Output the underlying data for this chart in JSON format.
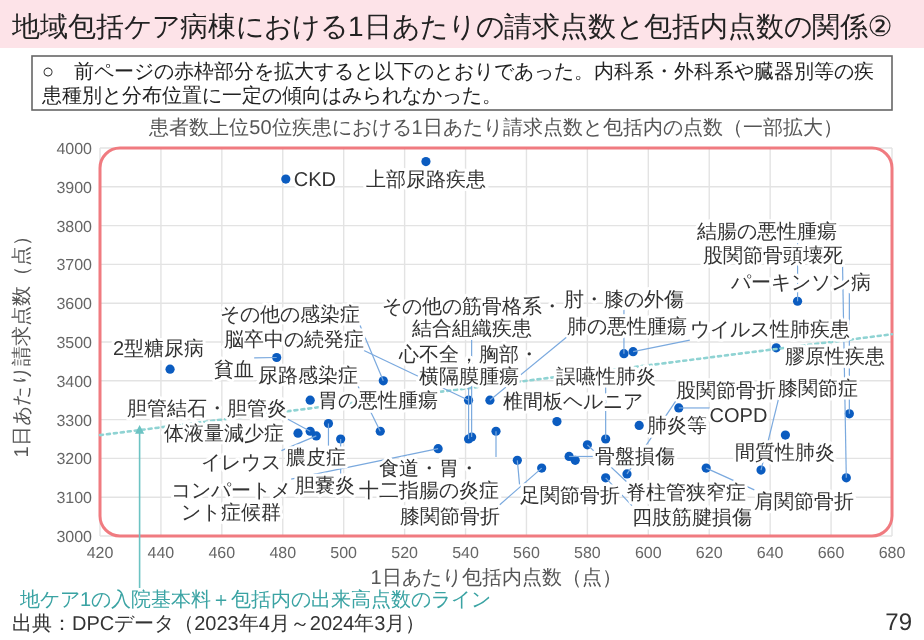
{
  "chart_data": {
    "type": "scatter",
    "title": "地域包括ケア病棟における1日あたりの請求点数と包括内点数の関係②",
    "subtitle": "患者数上位50位疾患における1日あたり請求点数と包括内の点数（一部拡大）",
    "xlabel": "1日あたり包括内点数（点）",
    "ylabel": "1日あたり請求点数（点）",
    "xlim": [
      420,
      680
    ],
    "xticks": [
      420,
      440,
      460,
      480,
      500,
      520,
      540,
      560,
      580,
      600,
      620,
      640,
      660,
      680
    ],
    "ylim": [
      3000,
      4000
    ],
    "yticks": [
      3000,
      3100,
      3200,
      3300,
      3400,
      3500,
      3600,
      3700,
      3800,
      3900,
      4000
    ],
    "grid": true,
    "marker": "circle",
    "series": [
      {
        "color": "#0b5cc0",
        "x": [
          481,
          527,
          443,
          478,
          513,
          489,
          495,
          485,
          489,
          491,
          499,
          512,
          531,
          541,
          542,
          541,
          548,
          550,
          570,
          580,
          586,
          597,
          610,
          557,
          565,
          574,
          576,
          586,
          593,
          619,
          637,
          645,
          666,
          665,
          592,
          595,
          649,
          642
        ],
        "values": [
          3920,
          3965,
          3430,
          3460,
          3400,
          3350,
          3290,
          3265,
          3270,
          3258,
          3250,
          3270,
          3225,
          3250,
          3255,
          3350,
          3350,
          3270,
          3295,
          3235,
          3250,
          3285,
          3330,
          3195,
          3175,
          3205,
          3195,
          3150,
          3160,
          3175,
          3170,
          3260,
          3315,
          3150,
          3470,
          3475,
          3605,
          3485
        ]
      },
      {
        "type": "line",
        "color": "#8fd3d3",
        "line_style": "dotted",
        "marker": "none",
        "x": [
          420,
          680
        ],
        "values": [
          3260,
          3520
        ]
      }
    ],
    "annotations": [
      "○　前ページの赤枠部分を拡大すると以下のとおりであった。内科系・外科系や臓器別等の疾患種別と分布位置に一定の傾向はみられなかった。",
      "出典：DPCデータ（2023年4月～2024年3月）",
      "79",
      {
        "text": "地ケア1の入院基本料＋包括内の出来高点数のライン",
        "x": 433,
        "y": 3273
      },
      {
        "text": "CKD",
        "x": 481,
        "y": 3920
      },
      {
        "text": "上部尿路疾患",
        "x": 527,
        "y": 3965
      },
      {
        "text": "2型糖尿病",
        "x": 443,
        "y": 3430
      },
      {
        "text": "貧血",
        "x": 478,
        "y": 3460
      },
      {
        "text": "その他の感染症",
        "x": 513,
        "y": 3400
      },
      {
        "text": "胃の悪性腫瘍",
        "x": 489,
        "y": 3350
      },
      {
        "text": "膿皮症",
        "x": 495,
        "y": 3290
      },
      {
        "text": "体液量減少症",
        "x": 485,
        "y": 3265
      },
      {
        "text": "胆管結石・胆管炎",
        "x": 489,
        "y": 3270
      },
      {
        "text": "イレウス",
        "x": 491,
        "y": 3258
      },
      {
        "text": "胆嚢炎",
        "x": 499,
        "y": 3250
      },
      {
        "text": "尿路感染症",
        "x": 512,
        "y": 3270
      },
      {
        "text": "コンパートメント症候群",
        "x": 531,
        "y": 3225
      },
      {
        "text": "心不全，胸部・横隔膜腫瘍",
        "x": 541,
        "y": 3250
      },
      {
        "text": "その他の筋骨格系・結合組織疾患",
        "x": 542,
        "y": 3255
      },
      {
        "text": "脳卒中の続発症",
        "x": 541,
        "y": 3350
      },
      {
        "text": "肺の悪性腫瘍",
        "x": 548,
        "y": 3350
      },
      {
        "text": "食道・胃・十二指腸の炎症",
        "x": 550,
        "y": 3270
      },
      {
        "text": "椎間板ヘルニア",
        "x": 570,
        "y": 3295
      },
      {
        "text": "脊柱管狭窄症",
        "x": 580,
        "y": 3235
      },
      {
        "text": "誤嚥性肺炎",
        "x": 586,
        "y": 3250
      },
      {
        "text": "肺炎等",
        "x": 597,
        "y": 3285
      },
      {
        "text": "COPD",
        "x": 610,
        "y": 3330
      },
      {
        "text": "足関節骨折",
        "x": 557,
        "y": 3195
      },
      {
        "text": "膝関節骨折",
        "x": 565,
        "y": 3175
      },
      {
        "text": "骨盤損傷",
        "x": 574,
        "y": 3205
      },
      {
        "text": "四肢筋腱損傷",
        "x": 586,
        "y": 3150
      },
      {
        "text": "股関節骨折",
        "x": 593,
        "y": 3160
      },
      {
        "text": "肩関節骨折",
        "x": 619,
        "y": 3175
      },
      {
        "text": "膝関節症",
        "x": 637,
        "y": 3170
      },
      {
        "text": "間質性肺炎",
        "x": 645,
        "y": 3260
      },
      {
        "text": "パーキンソン病",
        "x": 666,
        "y": 3315
      },
      {
        "text": "股関節骨頭壊死",
        "x": 665,
        "y": 3150
      },
      {
        "text": "肘・膝の外傷",
        "x": 592,
        "y": 3470
      },
      {
        "text": "ウイルス性肺疾患",
        "x": 595,
        "y": 3475
      },
      {
        "text": "結腸の悪性腫瘍",
        "x": 649,
        "y": 3605
      },
      {
        "text": "膠原性疾患",
        "x": 642,
        "y": 3485
      }
    ]
  }
}
